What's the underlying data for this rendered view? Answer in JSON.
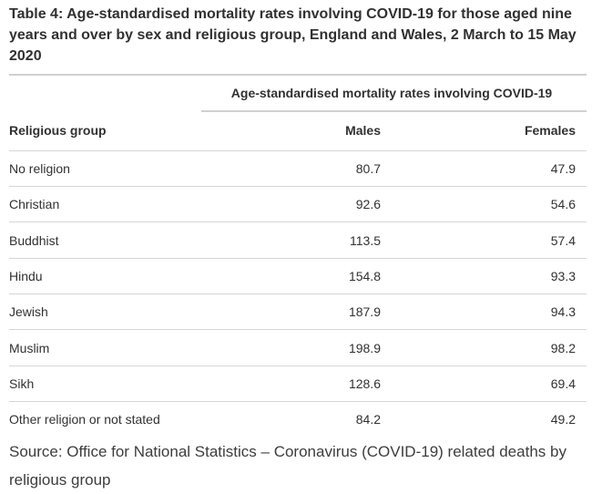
{
  "table": {
    "title": "Table 4: Age-standardised mortality rates involving COVID-19 for those aged nine years and over by sex and religious group, England and Wales, 2 March to 15 May 2020",
    "group_header": "Age-standardised mortality rates involving COVID-19",
    "columns": [
      "Religious group",
      "Males",
      "Females"
    ],
    "rows": [
      {
        "group": "No religion",
        "males": "80.7",
        "females": "47.9"
      },
      {
        "group": "Christian",
        "males": "92.6",
        "females": "54.6"
      },
      {
        "group": "Buddhist",
        "males": "113.5",
        "females": "57.4"
      },
      {
        "group": "Hindu",
        "males": "154.8",
        "females": "93.3"
      },
      {
        "group": "Jewish",
        "males": "187.9",
        "females": "94.3"
      },
      {
        "group": "Muslim",
        "males": "198.9",
        "females": "98.2"
      },
      {
        "group": "Sikh",
        "males": "128.6",
        "females": "69.4"
      },
      {
        "group": "Other religion or not stated",
        "males": "84.2",
        "females": "49.2"
      }
    ]
  },
  "source": "Source: Office for National Statistics – Coronavirus (COVID-19) related deaths by religious group"
}
